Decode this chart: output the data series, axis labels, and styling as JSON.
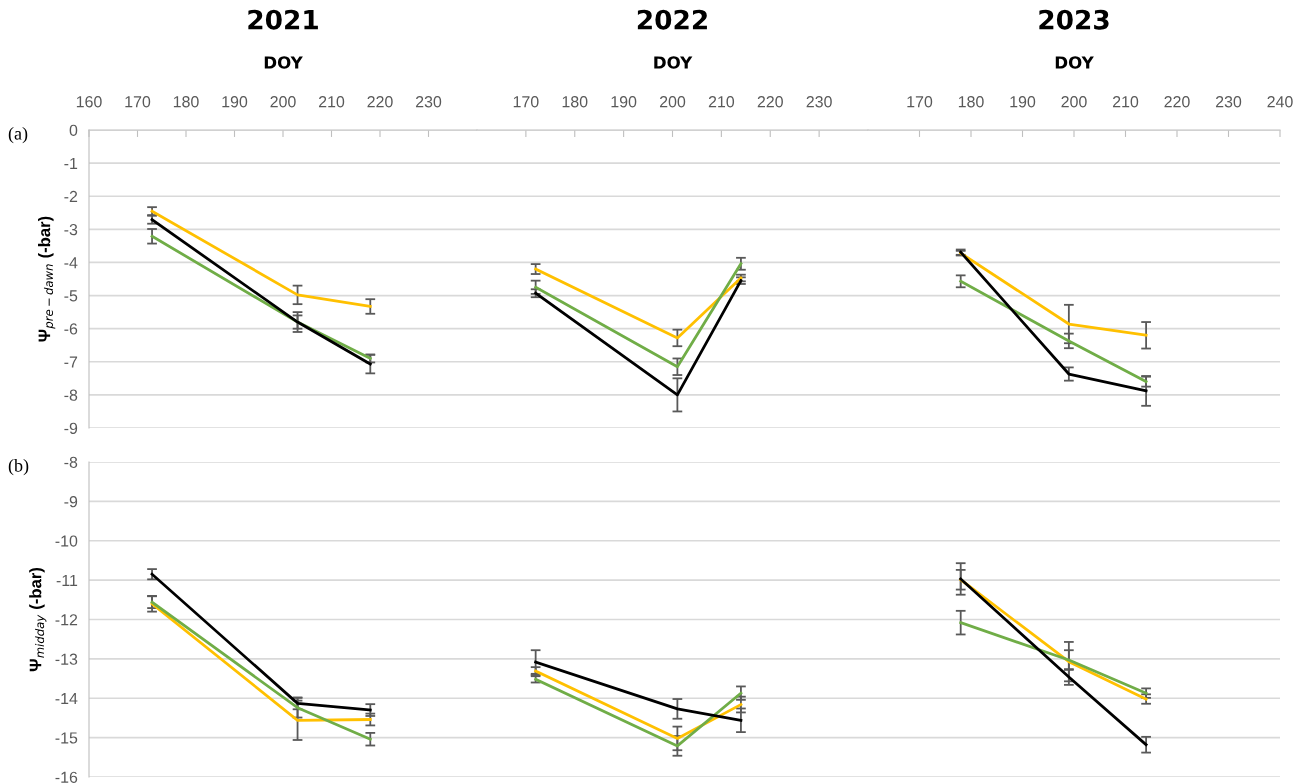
{
  "chart_data": [
    {
      "type": "line",
      "title": "2021",
      "xlabel": "DOY",
      "ylabel": "Ψ$_{pre−dawn}$ (-bar)",
      "annotations": [
        "(a)"
      ],
      "grid": "y",
      "xlim": [
        160,
        240
      ],
      "xticks": [
        160,
        170,
        180,
        190,
        200,
        210,
        220,
        230
      ],
      "ylim": [
        -9,
        0
      ],
      "yticks": [
        0,
        -1,
        -2,
        -3,
        -4,
        -5,
        -6,
        -7,
        -8,
        -9
      ],
      "x": [
        173,
        203,
        218
      ],
      "series": [
        {
          "color": "#ffc000",
          "values": [
            -2.45,
            -4.98,
            -5.33
          ],
          "errors": [
            0.12,
            0.28,
            0.22
          ]
        },
        {
          "color": "#70ad47",
          "values": [
            -3.21,
            -5.8,
            -6.9
          ],
          "errors": [
            0.22,
            0.2,
            0.12
          ]
        },
        {
          "color": "#000000",
          "values": [
            -2.71,
            -5.8,
            -7.07
          ],
          "errors": [
            0.12,
            0.3,
            0.28
          ]
        }
      ]
    },
    {
      "type": "line",
      "title": "2022",
      "xlabel": "DOY",
      "grid": "y",
      "tick_labels": "x",
      "xlim": [
        160,
        240
      ],
      "xticks": [
        170,
        180,
        190,
        200,
        210,
        220,
        230
      ],
      "ylim": [
        -9,
        0
      ],
      "x": [
        172,
        201,
        214
      ],
      "series": [
        {
          "color": "#ffc000",
          "values": [
            -4.2,
            -6.28,
            -4.47
          ],
          "errors": [
            0.15,
            0.25,
            0.1
          ]
        },
        {
          "color": "#70ad47",
          "values": [
            -4.75,
            -7.15,
            -4.04
          ],
          "errors": [
            0.2,
            0.25,
            0.18
          ]
        },
        {
          "color": "#000000",
          "values": [
            -4.93,
            -8.0,
            -4.55
          ],
          "errors": [
            0.12,
            0.5,
            0.1
          ]
        }
      ]
    },
    {
      "type": "line",
      "title": "2023",
      "xlabel": "DOY",
      "grid": "y",
      "tick_labels": "x",
      "xlim": [
        160,
        240
      ],
      "xticks": [
        170,
        180,
        190,
        200,
        210,
        220,
        230,
        240
      ],
      "ylim": [
        -9,
        0
      ],
      "x": [
        178,
        199,
        214
      ],
      "series": [
        {
          "color": "#ffc000",
          "values": [
            -3.72,
            -5.86,
            -6.2
          ],
          "errors": [
            0.07,
            0.58,
            0.4
          ]
        },
        {
          "color": "#70ad47",
          "values": [
            -4.57,
            -6.37,
            -7.6
          ],
          "errors": [
            0.18,
            0.22,
            0.15
          ]
        },
        {
          "color": "#000000",
          "values": [
            -3.69,
            -7.37,
            -7.88
          ],
          "errors": [
            0.08,
            0.2,
            0.45
          ]
        }
      ]
    },
    {
      "type": "line",
      "ylabel": "Ψ$_{midday}$ (-bar)",
      "annotations": [
        "(b)"
      ],
      "grid": "y",
      "tick_labels": "y",
      "xlim": [
        160,
        240
      ],
      "ylim": [
        -16,
        -8
      ],
      "yticks": [
        -8,
        -9,
        -10,
        -11,
        -12,
        -13,
        -14,
        -15,
        -16
      ],
      "x": [
        173,
        203,
        218
      ],
      "series": [
        {
          "color": "#ffc000",
          "values": [
            -11.6,
            -14.56,
            -14.54
          ],
          "errors": [
            0.2,
            0.5,
            0.15
          ]
        },
        {
          "color": "#70ad47",
          "values": [
            -11.56,
            -14.24,
            -15.04
          ],
          "errors": [
            0.15,
            0.25,
            0.16
          ]
        },
        {
          "color": "#000000",
          "values": [
            -10.85,
            -14.13,
            -14.3
          ],
          "errors": [
            0.13,
            0.15,
            0.15
          ]
        }
      ]
    },
    {
      "type": "line",
      "grid": "y",
      "tick_labels": false,
      "xlim": [
        160,
        240
      ],
      "ylim": [
        -16,
        -8
      ],
      "x": [
        172,
        201,
        214
      ],
      "series": [
        {
          "color": "#ffc000",
          "values": [
            -13.31,
            -15.02,
            -14.16
          ],
          "errors": [
            0.1,
            0.3,
            0.2
          ]
        },
        {
          "color": "#70ad47",
          "values": [
            -13.52,
            -15.21,
            -13.87
          ],
          "errors": [
            0.08,
            0.25,
            0.17
          ]
        },
        {
          "color": "#000000",
          "values": [
            -13.08,
            -14.27,
            -14.56
          ],
          "errors": [
            0.3,
            0.25,
            0.3
          ]
        }
      ]
    },
    {
      "type": "line",
      "grid": "y",
      "tick_labels": false,
      "xlim": [
        160,
        240
      ],
      "ylim": [
        -16,
        -8
      ],
      "x": [
        178,
        199,
        214
      ],
      "series": [
        {
          "color": "#ffc000",
          "values": [
            -10.99,
            -13.07,
            -14.02
          ],
          "errors": [
            0.25,
            0.5,
            0.12
          ]
        },
        {
          "color": "#70ad47",
          "values": [
            -12.08,
            -13.03,
            -13.87
          ],
          "errors": [
            0.3,
            0.25,
            0.12
          ]
        },
        {
          "color": "#000000",
          "values": [
            -10.97,
            -13.46,
            -15.18
          ],
          "errors": [
            0.4,
            0.2,
            0.2
          ]
        }
      ]
    }
  ]
}
